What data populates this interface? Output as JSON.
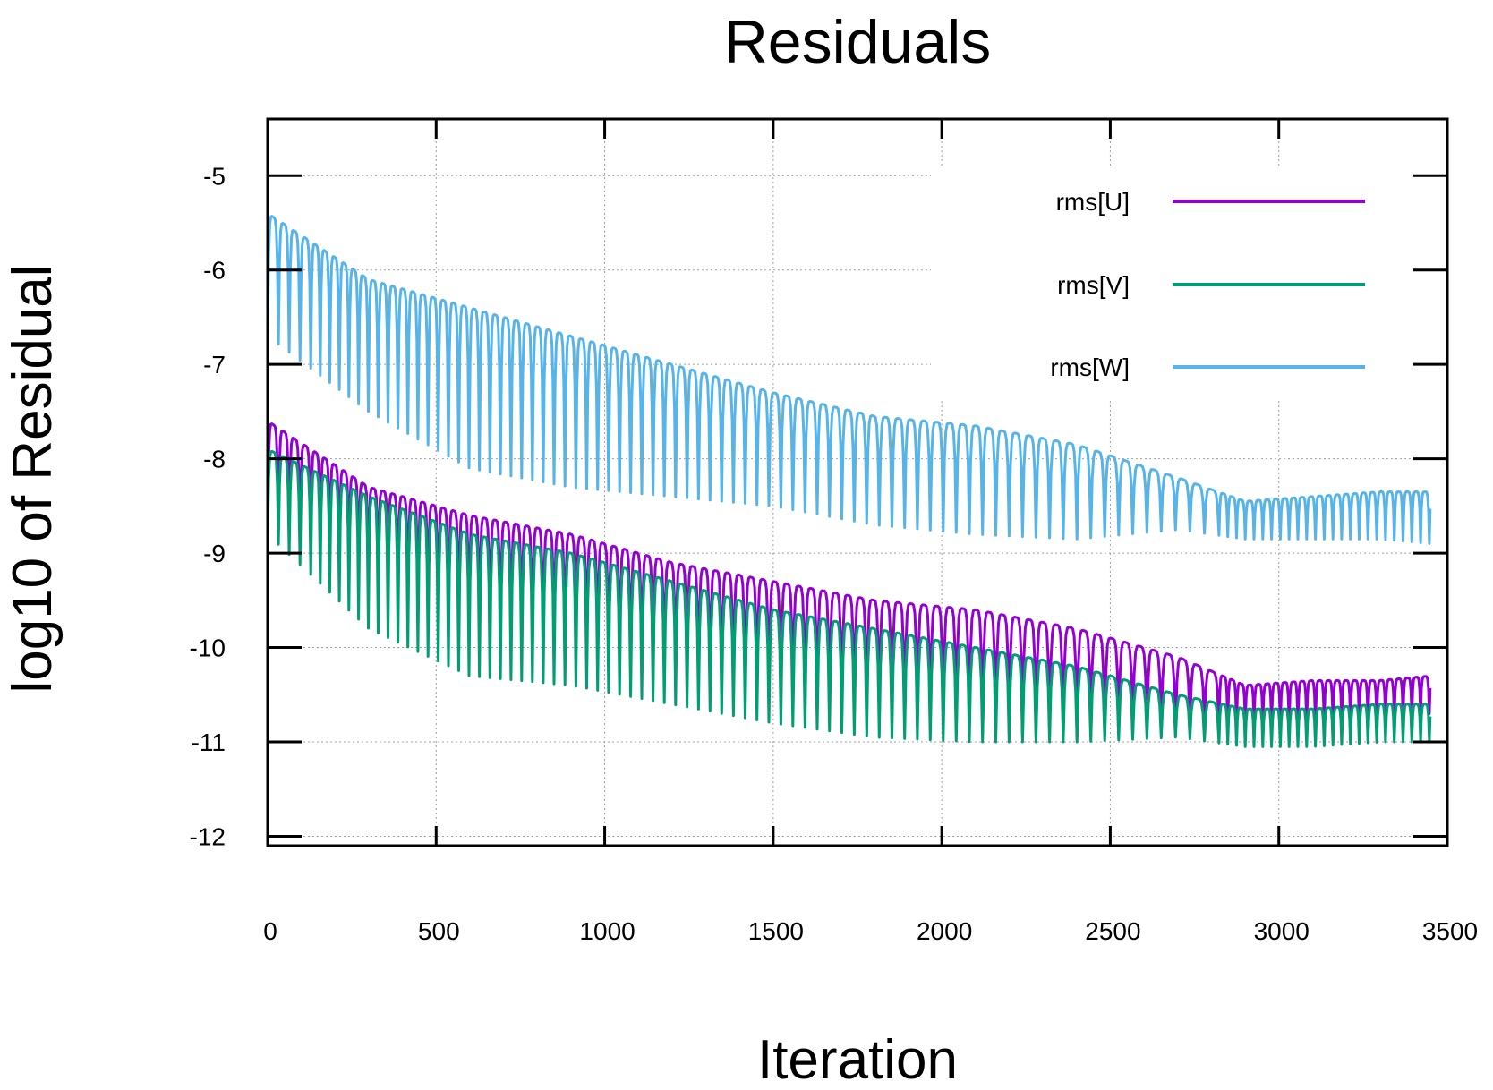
{
  "chart_data": {
    "type": "line",
    "title": "Residuals",
    "xlabel": "Iteration",
    "ylabel": "log10 of Residual",
    "xlim": [
      0,
      3500
    ],
    "ylim": [
      -12.1,
      -4.4
    ],
    "xticks": [
      0,
      500,
      1000,
      1500,
      2000,
      2500,
      3000,
      3500
    ],
    "yticks": [
      -5,
      -6,
      -7,
      -8,
      -9,
      -10,
      -11,
      -12
    ],
    "grid": true,
    "legend_position": "top-right",
    "series": [
      {
        "name": "rms[U]",
        "color": "#9400d3",
        "x": [
          0,
          300,
          600,
          900,
          1200,
          1500,
          1800,
          2100,
          2400,
          2700,
          2900,
          3100,
          3300,
          3450
        ],
        "peaks": [
          -7.6,
          -8.3,
          -8.6,
          -8.8,
          -9.1,
          -9.3,
          -9.5,
          -9.6,
          -9.8,
          -10.1,
          -10.4,
          -10.35,
          -10.35,
          -10.3
        ],
        "troughs": [
          -8.7,
          -9.3,
          -9.9,
          -10.1,
          -10.4,
          -10.6,
          -10.8,
          -10.9,
          -10.95,
          -10.9,
          -10.8,
          -10.8,
          -10.75,
          -10.7
        ]
      },
      {
        "name": "rms[V]",
        "color": "#009e73",
        "x": [
          0,
          300,
          600,
          900,
          1200,
          1500,
          1800,
          2100,
          2400,
          2700,
          2900,
          3100,
          3300,
          3450
        ],
        "peaks": [
          -7.9,
          -8.4,
          -8.8,
          -9.0,
          -9.3,
          -9.6,
          -9.8,
          -10.0,
          -10.2,
          -10.5,
          -10.65,
          -10.65,
          -10.6,
          -10.6
        ],
        "troughs": [
          -8.8,
          -9.8,
          -10.3,
          -10.4,
          -10.6,
          -10.8,
          -10.95,
          -11.0,
          -11.0,
          -10.95,
          -11.05,
          -11.05,
          -11.0,
          -11.0
        ]
      },
      {
        "name": "rms[W]",
        "color": "#56b4e9",
        "x": [
          0,
          300,
          600,
          900,
          1200,
          1500,
          1800,
          2100,
          2400,
          2700,
          2900,
          3100,
          3300,
          3450
        ],
        "peaks": [
          -5.4,
          -6.1,
          -6.4,
          -6.7,
          -7.0,
          -7.3,
          -7.55,
          -7.65,
          -7.85,
          -8.2,
          -8.45,
          -8.4,
          -8.35,
          -8.35
        ],
        "troughs": [
          -6.7,
          -7.5,
          -8.1,
          -8.3,
          -8.4,
          -8.5,
          -8.7,
          -8.8,
          -8.85,
          -8.75,
          -8.85,
          -8.85,
          -8.85,
          -8.9
        ]
      }
    ]
  }
}
